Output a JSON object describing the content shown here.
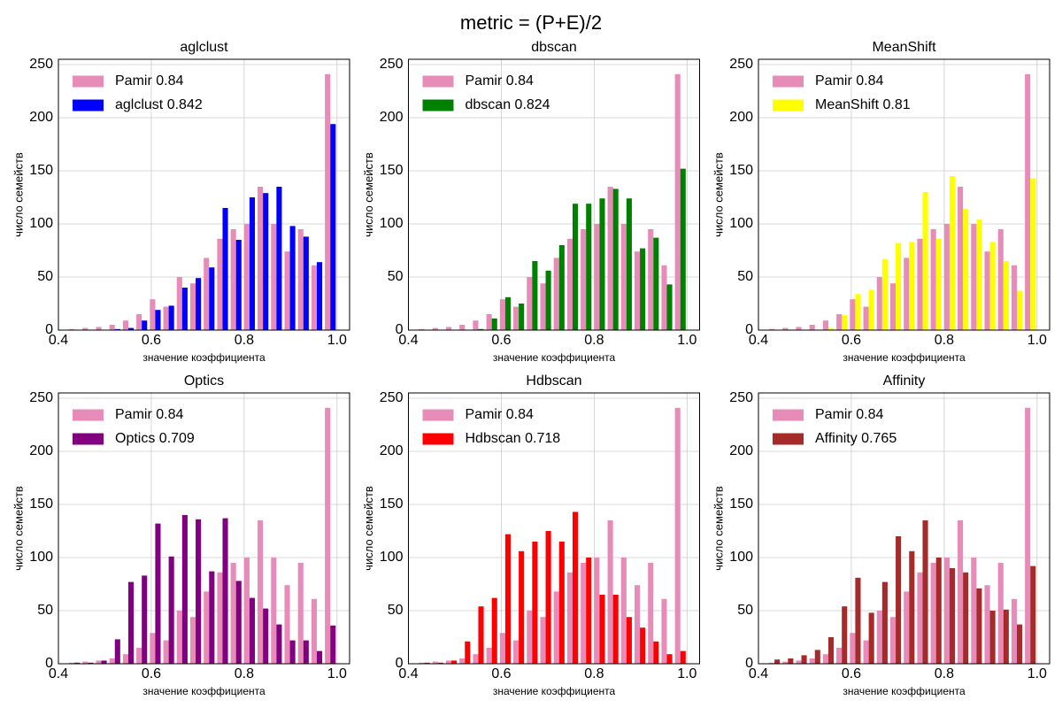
{
  "title": "metric = (P+E)/2",
  "chart_data": [
    {
      "type": "histogram",
      "title": "aglclust",
      "xlabel": "значение коэффициента",
      "ylabel": "число семейств",
      "bins": [
        0.42,
        0.449,
        0.478,
        0.507,
        0.536,
        0.565,
        0.594,
        0.623,
        0.652,
        0.681,
        0.71,
        0.739,
        0.768,
        0.797,
        0.826,
        0.855,
        0.884,
        0.913,
        0.942,
        0.971,
        1
      ],
      "series": [
        {
          "name": "Pamir 0.84",
          "color": "#e78bb9",
          "values": [
            1,
            2,
            3,
            5,
            9,
            15,
            29,
            22,
            50,
            44,
            68,
            86,
            95,
            100,
            135,
            100,
            74,
            95,
            61,
            241
          ]
        },
        {
          "name": "aglclust 0.842",
          "color": "#0000ff",
          "values": [
            0,
            0,
            0,
            1,
            2,
            9,
            19,
            23,
            40,
            49,
            59,
            115,
            85,
            125,
            129,
            135,
            98,
            88,
            64,
            194
          ]
        }
      ],
      "xlim": [
        0.4,
        1.027
      ],
      "ylim": [
        0,
        255
      ],
      "xticks": [
        0.4,
        0.6,
        0.8,
        {
          "value": 1,
          "label": "1.0"
        }
      ],
      "yticks": [
        0,
        50,
        100,
        150,
        200,
        250
      ],
      "grid": true,
      "legend": "upper left"
    },
    {
      "type": "histogram",
      "title": "dbscan",
      "xlabel": "значение коэффициента",
      "ylabel": "число семейств",
      "bins": [
        0.42,
        0.449,
        0.478,
        0.507,
        0.536,
        0.565,
        0.594,
        0.623,
        0.652,
        0.681,
        0.71,
        0.739,
        0.768,
        0.797,
        0.826,
        0.855,
        0.884,
        0.913,
        0.942,
        0.971,
        1
      ],
      "series": [
        {
          "name": "Pamir 0.84",
          "color": "#e78bb9",
          "values": [
            1,
            2,
            3,
            5,
            9,
            15,
            29,
            22,
            50,
            44,
            68,
            86,
            95,
            100,
            135,
            100,
            74,
            95,
            61,
            241
          ]
        },
        {
          "name": "dbscan 0.824",
          "color": "#008000",
          "values": [
            0,
            0,
            0,
            0,
            1,
            11,
            31,
            25,
            65,
            56,
            80,
            119,
            119,
            124,
            133,
            124,
            77,
            87,
            43,
            152
          ]
        }
      ],
      "xlim": [
        0.4,
        1.027
      ],
      "ylim": [
        0,
        255
      ],
      "xticks": [
        0.4,
        0.6,
        0.8,
        {
          "value": 1,
          "label": "1.0"
        }
      ],
      "yticks": [
        0,
        50,
        100,
        150,
        200,
        250
      ],
      "grid": true,
      "legend": "upper left"
    },
    {
      "type": "histogram",
      "title": "MeanShift",
      "xlabel": "значение коэффициента",
      "ylabel": "число семейств",
      "bins": [
        0.42,
        0.449,
        0.478,
        0.507,
        0.536,
        0.565,
        0.594,
        0.623,
        0.652,
        0.681,
        0.71,
        0.739,
        0.768,
        0.797,
        0.826,
        0.855,
        0.884,
        0.913,
        0.942,
        0.971,
        1
      ],
      "series": [
        {
          "name": "Pamir 0.84",
          "color": "#e78bb9",
          "values": [
            1,
            2,
            3,
            5,
            9,
            15,
            29,
            22,
            50,
            44,
            68,
            86,
            95,
            100,
            135,
            100,
            74,
            95,
            61,
            241
          ]
        },
        {
          "name": "MeanShift 0.81",
          "color": "#ffff00",
          "values": [
            0,
            0,
            0,
            0,
            2,
            14,
            34,
            38,
            67,
            82,
            83,
            130,
            86,
            145,
            114,
            104,
            83,
            65,
            37,
            143
          ]
        }
      ],
      "xlim": [
        0.4,
        1.027
      ],
      "ylim": [
        0,
        255
      ],
      "xticks": [
        0.4,
        0.6,
        0.8,
        {
          "value": 1,
          "label": "1.0"
        }
      ],
      "yticks": [
        0,
        50,
        100,
        150,
        200,
        250
      ],
      "grid": true,
      "legend": "upper left"
    },
    {
      "type": "histogram",
      "title": "Optics",
      "xlabel": "значение коэффициента",
      "ylabel": "число семейств",
      "bins": [
        0.42,
        0.449,
        0.478,
        0.507,
        0.536,
        0.565,
        0.594,
        0.623,
        0.652,
        0.681,
        0.71,
        0.739,
        0.768,
        0.797,
        0.826,
        0.855,
        0.884,
        0.913,
        0.942,
        0.971,
        1
      ],
      "series": [
        {
          "name": "Pamir 0.84",
          "color": "#e78bb9",
          "values": [
            1,
            2,
            3,
            5,
            9,
            15,
            29,
            22,
            50,
            44,
            68,
            86,
            95,
            100,
            135,
            100,
            74,
            95,
            61,
            241
          ]
        },
        {
          "name": "Optics 0.709",
          "color": "#800080",
          "values": [
            1,
            1,
            3,
            23,
            77,
            83,
            132,
            101,
            140,
            136,
            87,
            137,
            78,
            62,
            52,
            37,
            22,
            22,
            12,
            36
          ]
        }
      ],
      "xlim": [
        0.4,
        1.027
      ],
      "ylim": [
        0,
        255
      ],
      "xticks": [
        0.4,
        0.6,
        0.8,
        {
          "value": 1,
          "label": "1.0"
        }
      ],
      "yticks": [
        0,
        50,
        100,
        150,
        200,
        250
      ],
      "grid": true,
      "legend": "upper left"
    },
    {
      "type": "histogram",
      "title": "Hdbscan",
      "xlabel": "значение коэффициента",
      "ylabel": "число семейств",
      "bins": [
        0.42,
        0.449,
        0.478,
        0.507,
        0.536,
        0.565,
        0.594,
        0.623,
        0.652,
        0.681,
        0.71,
        0.739,
        0.768,
        0.797,
        0.826,
        0.855,
        0.884,
        0.913,
        0.942,
        0.971,
        1
      ],
      "series": [
        {
          "name": "Pamir 0.84",
          "color": "#e78bb9",
          "values": [
            1,
            2,
            3,
            5,
            9,
            15,
            29,
            22,
            50,
            44,
            68,
            86,
            95,
            100,
            135,
            100,
            74,
            95,
            61,
            241
          ]
        },
        {
          "name": "Hdbscan 0.718",
          "color": "#ff0000",
          "values": [
            1,
            1,
            3,
            21,
            54,
            62,
            122,
            106,
            115,
            125,
            115,
            143,
            100,
            65,
            65,
            44,
            34,
            21,
            9,
            12
          ]
        }
      ],
      "xlim": [
        0.4,
        1.027
      ],
      "ylim": [
        0,
        255
      ],
      "xticks": [
        0.4,
        0.6,
        0.8,
        {
          "value": 1,
          "label": "1.0"
        }
      ],
      "yticks": [
        0,
        50,
        100,
        150,
        200,
        250
      ],
      "grid": true,
      "legend": "upper left"
    },
    {
      "type": "histogram",
      "title": "Affinity",
      "xlabel": "значение коэффициента",
      "ylabel": "число семейств",
      "bins": [
        0.42,
        0.449,
        0.478,
        0.507,
        0.536,
        0.565,
        0.594,
        0.623,
        0.652,
        0.681,
        0.71,
        0.739,
        0.768,
        0.797,
        0.826,
        0.855,
        0.884,
        0.913,
        0.942,
        0.971,
        1
      ],
      "series": [
        {
          "name": "Pamir 0.84",
          "color": "#e78bb9",
          "values": [
            1,
            2,
            3,
            5,
            9,
            15,
            29,
            22,
            50,
            44,
            68,
            86,
            95,
            100,
            135,
            100,
            74,
            95,
            61,
            241
          ]
        },
        {
          "name": "Affinity 0.765",
          "color": "#a52a2a",
          "values": [
            4,
            5,
            8,
            13,
            25,
            54,
            81,
            48,
            77,
            120,
            106,
            135,
            100,
            90,
            86,
            71,
            50,
            51,
            37,
            92
          ]
        }
      ],
      "xlim": [
        0.4,
        1.027
      ],
      "ylim": [
        0,
        255
      ],
      "xticks": [
        0.4,
        0.6,
        0.8,
        {
          "value": 1,
          "label": "1.0"
        }
      ],
      "yticks": [
        0,
        50,
        100,
        150,
        200,
        250
      ],
      "grid": true,
      "legend": "upper left"
    }
  ]
}
